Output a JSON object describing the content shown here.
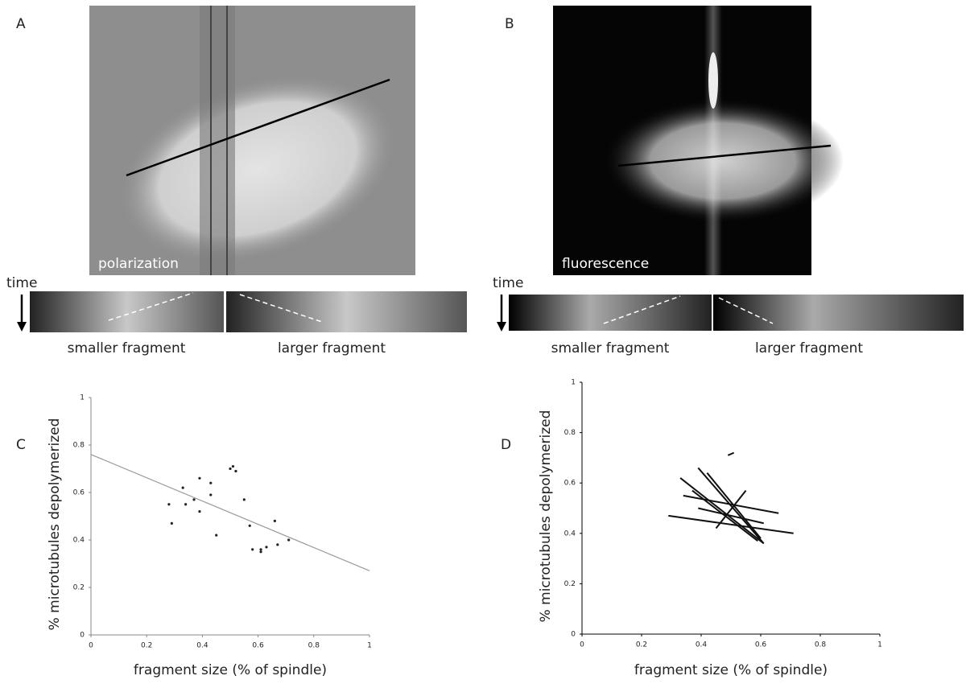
{
  "panels": {
    "a": {
      "label": "A",
      "caption": "polarization",
      "time_label": "time",
      "left_caption": "smaller fragment",
      "right_caption": "larger fragment"
    },
    "b": {
      "label": "B",
      "caption": "fluorescence",
      "time_label": "time",
      "left_caption": "smaller fragment",
      "right_caption": "larger fragment"
    }
  },
  "chart_data": [
    {
      "type": "scatter",
      "panel_label": "C",
      "xlabel": "fragment size (% of spindle)",
      "ylabel": "% microtubules depolymerized",
      "xlim": [
        0,
        1
      ],
      "ylim": [
        0,
        1
      ],
      "xticks": [
        0,
        0.2,
        0.4,
        0.6,
        0.8,
        1
      ],
      "yticks": [
        0,
        0.2,
        0.4,
        0.6,
        0.8,
        1
      ],
      "x": [
        0.28,
        0.29,
        0.33,
        0.34,
        0.37,
        0.39,
        0.39,
        0.43,
        0.43,
        0.45,
        0.5,
        0.51,
        0.52,
        0.55,
        0.57,
        0.58,
        0.61,
        0.61,
        0.63,
        0.66,
        0.67,
        0.71
      ],
      "y": [
        0.55,
        0.47,
        0.62,
        0.55,
        0.57,
        0.66,
        0.52,
        0.64,
        0.59,
        0.42,
        0.7,
        0.71,
        0.69,
        0.57,
        0.46,
        0.36,
        0.36,
        0.35,
        0.37,
        0.48,
        0.38,
        0.4
      ],
      "color": "#222222",
      "fit": {
        "x": [
          0,
          1
        ],
        "y": [
          0.76,
          0.27
        ],
        "color": "#999999"
      }
    },
    {
      "type": "segments",
      "panel_label": "D",
      "xlabel": "fragment size (% of spindle)",
      "ylabel": "% microtubules depolymerized",
      "xlim": [
        0,
        1
      ],
      "ylim": [
        0,
        1
      ],
      "xticks": [
        0,
        0.2,
        0.4,
        0.6,
        0.8,
        1
      ],
      "yticks": [
        0,
        0.2,
        0.4,
        0.6,
        0.8,
        1
      ],
      "color": "#111111",
      "segments": [
        {
          "x": [
            0.29,
            0.71
          ],
          "y": [
            0.47,
            0.4
          ]
        },
        {
          "x": [
            0.34,
            0.66
          ],
          "y": [
            0.55,
            0.48
          ]
        },
        {
          "x": [
            0.33,
            0.61
          ],
          "y": [
            0.62,
            0.36
          ]
        },
        {
          "x": [
            0.39,
            0.61
          ],
          "y": [
            0.66,
            0.36
          ]
        },
        {
          "x": [
            0.42,
            0.6
          ],
          "y": [
            0.64,
            0.38
          ]
        },
        {
          "x": [
            0.37,
            0.59
          ],
          "y": [
            0.57,
            0.37
          ]
        },
        {
          "x": [
            0.45,
            0.55
          ],
          "y": [
            0.42,
            0.57
          ]
        },
        {
          "x": [
            0.49,
            0.51
          ],
          "y": [
            0.71,
            0.72
          ]
        },
        {
          "x": [
            0.39,
            0.61
          ],
          "y": [
            0.5,
            0.44
          ]
        }
      ]
    }
  ]
}
